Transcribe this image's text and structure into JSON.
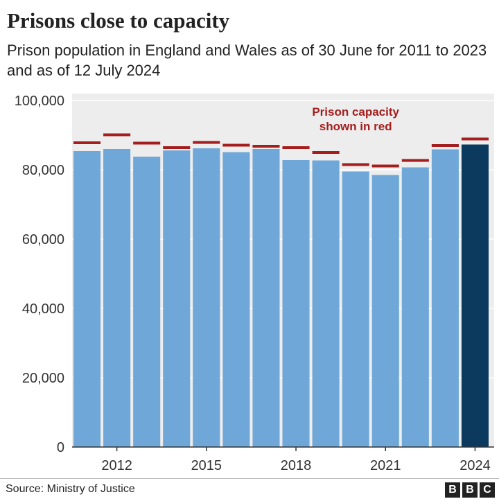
{
  "header": {
    "title": "Prisons close to capacity",
    "subtitle": "Prison population in England and Wales as of 30 June for 2011 to 2023 and as of 12 July 2024"
  },
  "footer": {
    "source": "Source: Ministry of Justice",
    "logo_letters": [
      "B",
      "B",
      "C"
    ]
  },
  "colors": {
    "bar": "#6fa8d8",
    "bar_highlight": "#0b3a5e",
    "capacity": "#a51d1d",
    "background": "#ededed",
    "annotation": "#a51d1d"
  },
  "chart_data": {
    "type": "bar",
    "title": "Prisons close to capacity",
    "subtitle": "Prison population in England and Wales as of 30 June for 2011 to 2023 and as of 12 July 2024",
    "xlabel": "",
    "ylabel": "",
    "categories": [
      "2011",
      "2012",
      "2013",
      "2014",
      "2015",
      "2016",
      "2017",
      "2018",
      "2019",
      "2020",
      "2021",
      "2022",
      "2023",
      "2024"
    ],
    "x_tick_labels": [
      "2012",
      "2015",
      "2018",
      "2021",
      "2024"
    ],
    "series": [
      {
        "values": [
          85400,
          86000,
          83800,
          85600,
          86200,
          85100,
          86000,
          82800,
          82700,
          79500,
          78500,
          80700,
          85900,
          87300
        ]
      }
    ],
    "capacity": [
      87800,
      90100,
      87700,
      86400,
      87900,
      87100,
      86800,
      86400,
      85000,
      81500,
      81100,
      82700,
      87000,
      88900
    ],
    "highlight_category": "2024",
    "ylim": [
      0,
      100000
    ],
    "y_ticks": [
      0,
      20000,
      40000,
      60000,
      80000,
      100000
    ],
    "y_tick_labels": [
      "0",
      "20,000",
      "40,000",
      "60,000",
      "80,000",
      "100,000"
    ],
    "annotation": {
      "lines": [
        "Prison capacity",
        "shown in red"
      ],
      "target_category": "2020"
    },
    "grid": true
  }
}
